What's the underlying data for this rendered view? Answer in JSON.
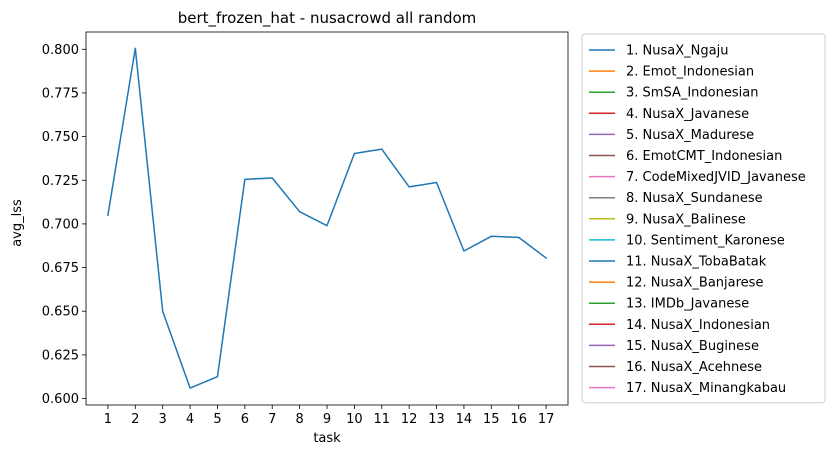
{
  "chart_data": {
    "type": "line",
    "title": "bert_frozen_hat - nusacrowd all random",
    "xlabel": "task",
    "ylabel": "avg_lss",
    "x": [
      1,
      2,
      3,
      4,
      5,
      6,
      7,
      8,
      9,
      10,
      11,
      12,
      13,
      14,
      15,
      16,
      17
    ],
    "xlim": [
      0.2,
      17.8
    ],
    "ylim": [
      0.5963,
      0.8099
    ],
    "yticks": [
      0.6,
      0.625,
      0.65,
      0.675,
      0.7,
      0.725,
      0.75,
      0.775,
      0.8
    ],
    "ytick_labels": [
      "0.600",
      "0.625",
      "0.650",
      "0.675",
      "0.700",
      "0.725",
      "0.750",
      "0.775",
      "0.800"
    ],
    "grid": false,
    "legend_position": "outside right",
    "series": [
      {
        "name": "1. NusaX_Ngaju",
        "color": "#1f77b4",
        "values": [
          0.705,
          0.8005,
          0.65,
          0.606,
          0.6125,
          0.7255,
          0.7263,
          0.707,
          0.699,
          0.7403,
          0.7428,
          0.7212,
          0.7237,
          0.6845,
          0.6929,
          0.6923,
          0.6805
        ]
      }
    ],
    "legend": [
      {
        "label": "1. NusaX_Ngaju",
        "color": "#1f77b4"
      },
      {
        "label": "2. Emot_Indonesian",
        "color": "#ff7f0e"
      },
      {
        "label": "3. SmSA_Indonesian",
        "color": "#2ca02c"
      },
      {
        "label": "4. NusaX_Javanese",
        "color": "#d62728"
      },
      {
        "label": "5. NusaX_Madurese",
        "color": "#9467bd"
      },
      {
        "label": "6. EmotCMT_Indonesian",
        "color": "#8c564b"
      },
      {
        "label": "7. CodeMixedJVID_Javanese",
        "color": "#e377c2"
      },
      {
        "label": "8. NusaX_Sundanese",
        "color": "#7f7f7f"
      },
      {
        "label": "9. NusaX_Balinese",
        "color": "#bcbd22"
      },
      {
        "label": "10. Sentiment_Karonese",
        "color": "#17becf"
      },
      {
        "label": "11. NusaX_TobaBatak",
        "color": "#1f77b4"
      },
      {
        "label": "12. NusaX_Banjarese",
        "color": "#ff7f0e"
      },
      {
        "label": "13. IMDb_Javanese",
        "color": "#2ca02c"
      },
      {
        "label": "14. NusaX_Indonesian",
        "color": "#d62728"
      },
      {
        "label": "15. NusaX_Buginese",
        "color": "#9467bd"
      },
      {
        "label": "16. NusaX_Acehnese",
        "color": "#8c564b"
      },
      {
        "label": "17. NusaX_Minangkabau",
        "color": "#e377c2"
      }
    ]
  }
}
